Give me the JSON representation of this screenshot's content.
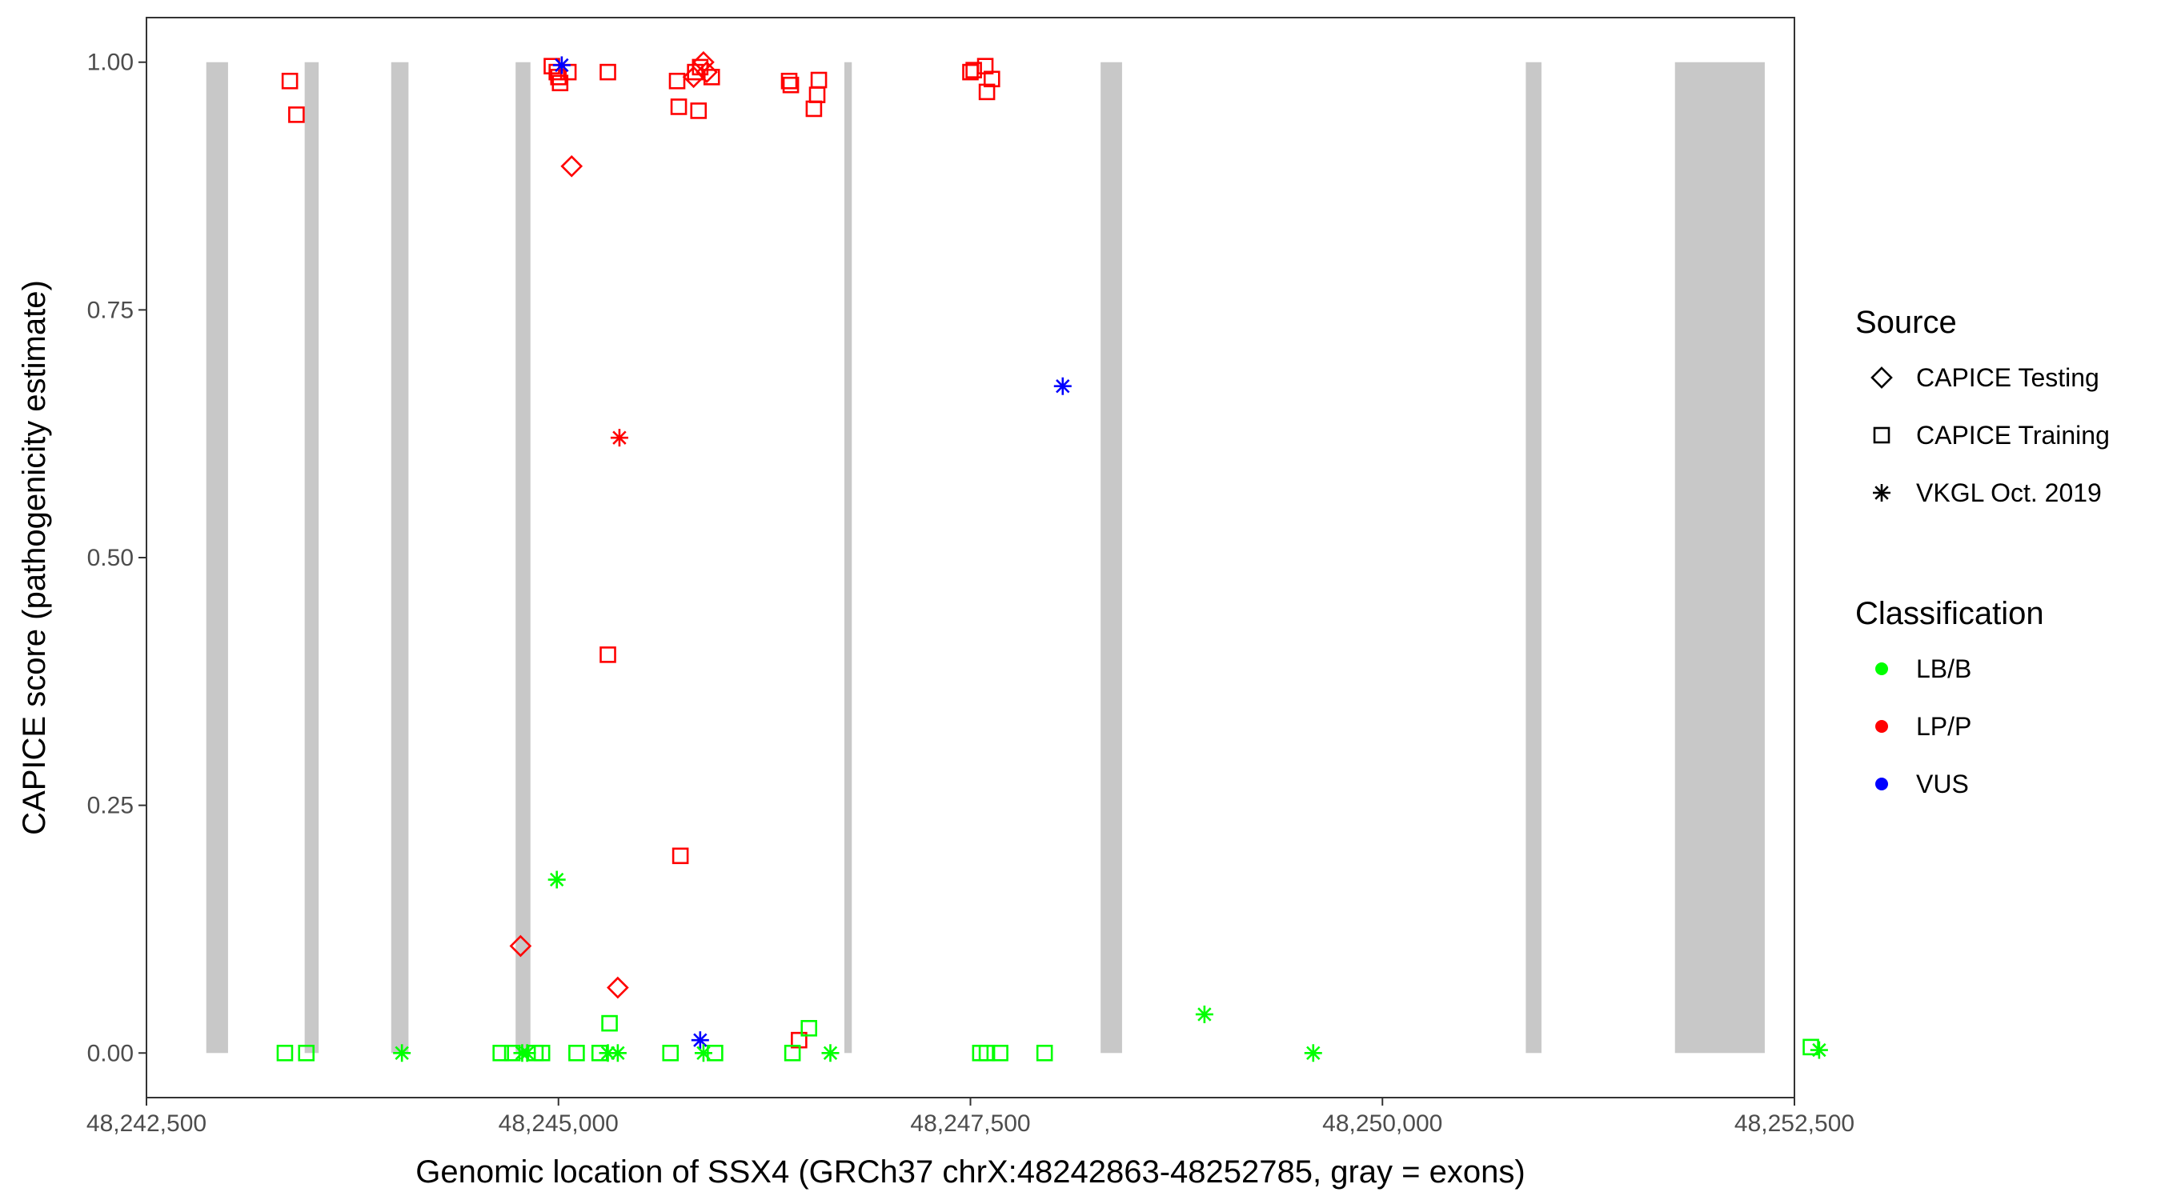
{
  "chart_data": {
    "type": "scatter",
    "xlabel": "Genomic location of SSX4 (GRCh37 chrX:48242863-48252785, gray = exons)",
    "ylabel": "CAPICE score (pathogenicity estimate)",
    "xlim": [
      42500,
      52500
    ],
    "ylim": [
      -0.045,
      1.045
    ],
    "x_ticks": [
      42500,
      45000,
      47500,
      50000,
      52500
    ],
    "x_tick_labels": [
      "48,242,500",
      "48,245,000",
      "48,247,500",
      "48,250,000",
      "48,252,500"
    ],
    "y_ticks": [
      0,
      0.25,
      0.5,
      0.75,
      1.0
    ],
    "y_tick_labels": [
      "0.00",
      "0.25",
      "0.50",
      "0.75",
      "1.00"
    ],
    "x_offset_note_removed": true,
    "exons": [
      [
        48242863,
        48242995
      ],
      [
        48243460,
        48243545
      ],
      [
        48243985,
        48244090
      ],
      [
        48244740,
        48244830
      ],
      [
        48246735,
        48246780
      ],
      [
        48248290,
        48248420
      ],
      [
        48250870,
        48250965
      ],
      [
        48251775,
        48252320
      ]
    ],
    "grid": false,
    "legend_position": "right",
    "legend": {
      "source_title": "Source",
      "source_entries": [
        {
          "label": "CAPICE Testing",
          "shape": "diamond"
        },
        {
          "label": "CAPICE Training",
          "shape": "square"
        },
        {
          "label": "VKGL Oct. 2019",
          "shape": "asterisk"
        }
      ],
      "class_title": "Classification",
      "class_entries": [
        {
          "label": "LB/B",
          "color": "#00ff00"
        },
        {
          "label": "LP/P",
          "color": "#ff0000"
        },
        {
          "label": "VUS",
          "color": "#0000ff"
        }
      ]
    },
    "colors": {
      "LB/B": "#00ff00",
      "LP/P": "#ff0000",
      "VUS": "#0000ff",
      "exon": "#c8c8c8"
    },
    "points": [
      {
        "x": 48243370,
        "y": 0.981,
        "source": "CAPICE Training",
        "class": "LP/P"
      },
      {
        "x": 48243410,
        "y": 0.947,
        "source": "CAPICE Training",
        "class": "LP/P"
      },
      {
        "x": 48244960,
        "y": 0.996,
        "source": "CAPICE Training",
        "class": "LP/P"
      },
      {
        "x": 48244990,
        "y": 0.99,
        "source": "CAPICE Training",
        "class": "LP/P"
      },
      {
        "x": 48245000,
        "y": 0.985,
        "source": "CAPICE Training",
        "class": "LP/P"
      },
      {
        "x": 48245010,
        "y": 0.979,
        "source": "CAPICE Training",
        "class": "LP/P"
      },
      {
        "x": 48245060,
        "y": 0.99,
        "source": "CAPICE Training",
        "class": "LP/P"
      },
      {
        "x": 48245300,
        "y": 0.99,
        "source": "CAPICE Training",
        "class": "LP/P"
      },
      {
        "x": 48245080,
        "y": 0.895,
        "source": "CAPICE Testing",
        "class": "LP/P"
      },
      {
        "x": 48245720,
        "y": 0.981,
        "source": "CAPICE Training",
        "class": "LP/P"
      },
      {
        "x": 48245730,
        "y": 0.955,
        "source": "CAPICE Training",
        "class": "LP/P"
      },
      {
        "x": 48245830,
        "y": 0.99,
        "source": "CAPICE Training",
        "class": "LP/P"
      },
      {
        "x": 48245860,
        "y": 0.995,
        "source": "CAPICE Training",
        "class": "LP/P"
      },
      {
        "x": 48245880,
        "y": 1.0,
        "source": "CAPICE Testing",
        "class": "LP/P"
      },
      {
        "x": 48245820,
        "y": 0.985,
        "source": "CAPICE Testing",
        "class": "LP/P"
      },
      {
        "x": 48245900,
        "y": 0.99,
        "source": "CAPICE Testing",
        "class": "LP/P"
      },
      {
        "x": 48245930,
        "y": 0.985,
        "source": "CAPICE Training",
        "class": "LP/P"
      },
      {
        "x": 48245850,
        "y": 0.951,
        "source": "CAPICE Training",
        "class": "LP/P"
      },
      {
        "x": 48246400,
        "y": 0.981,
        "source": "CAPICE Training",
        "class": "LP/P"
      },
      {
        "x": 48246410,
        "y": 0.977,
        "source": "CAPICE Training",
        "class": "LP/P"
      },
      {
        "x": 48246580,
        "y": 0.982,
        "source": "CAPICE Training",
        "class": "LP/P"
      },
      {
        "x": 48246570,
        "y": 0.967,
        "source": "CAPICE Training",
        "class": "LP/P"
      },
      {
        "x": 48246550,
        "y": 0.953,
        "source": "CAPICE Training",
        "class": "LP/P"
      },
      {
        "x": 48247500,
        "y": 0.99,
        "source": "CAPICE Training",
        "class": "LP/P"
      },
      {
        "x": 48247520,
        "y": 0.992,
        "source": "CAPICE Training",
        "class": "LP/P"
      },
      {
        "x": 48247590,
        "y": 0.996,
        "source": "CAPICE Training",
        "class": "LP/P"
      },
      {
        "x": 48247630,
        "y": 0.983,
        "source": "CAPICE Training",
        "class": "LP/P"
      },
      {
        "x": 48247600,
        "y": 0.97,
        "source": "CAPICE Training",
        "class": "LP/P"
      },
      {
        "x": 48245370,
        "y": 0.621,
        "source": "VKGL Oct. 2019",
        "class": "LP/P"
      },
      {
        "x": 48245300,
        "y": 0.402,
        "source": "CAPICE Training",
        "class": "LP/P"
      },
      {
        "x": 48245740,
        "y": 0.199,
        "source": "CAPICE Training",
        "class": "LP/P"
      },
      {
        "x": 48244770,
        "y": 0.108,
        "source": "CAPICE Testing",
        "class": "LP/P"
      },
      {
        "x": 48245360,
        "y": 0.066,
        "source": "CAPICE Testing",
        "class": "LP/P"
      },
      {
        "x": 48246460,
        "y": 0.013,
        "source": "CAPICE Training",
        "class": "LP/P"
      },
      {
        "x": 48245020,
        "y": 0.997,
        "source": "VKGL Oct. 2019",
        "class": "VUS"
      },
      {
        "x": 48248060,
        "y": 0.673,
        "source": "VKGL Oct. 2019",
        "class": "VUS"
      },
      {
        "x": 48245860,
        "y": 0.013,
        "source": "VKGL Oct. 2019",
        "class": "VUS"
      },
      {
        "x": 48244990,
        "y": 0.175,
        "source": "VKGL Oct. 2019",
        "class": "LB/B"
      },
      {
        "x": 48245310,
        "y": 0.03,
        "source": "CAPICE Training",
        "class": "LB/B"
      },
      {
        "x": 48246520,
        "y": 0.025,
        "source": "CAPICE Training",
        "class": "LB/B"
      },
      {
        "x": 48248920,
        "y": 0.039,
        "source": "VKGL Oct. 2019",
        "class": "LB/B"
      },
      {
        "x": 48252600,
        "y": 0.006,
        "source": "CAPICE Training",
        "class": "LB/B"
      },
      {
        "x": 48252650,
        "y": 0.003,
        "source": "VKGL Oct. 2019",
        "class": "LB/B"
      },
      {
        "x": 48243340,
        "y": 0.0,
        "source": "CAPICE Training",
        "class": "LB/B"
      },
      {
        "x": 48243470,
        "y": 0.0,
        "source": "CAPICE Training",
        "class": "LB/B"
      },
      {
        "x": 48244050,
        "y": 0.0,
        "source": "VKGL Oct. 2019",
        "class": "LB/B"
      },
      {
        "x": 48244650,
        "y": 0.0,
        "source": "CAPICE Training",
        "class": "LB/B"
      },
      {
        "x": 48244720,
        "y": 0.0,
        "source": "CAPICE Training",
        "class": "LB/B"
      },
      {
        "x": 48244780,
        "y": 0.0,
        "source": "VKGL Oct. 2019",
        "class": "LB/B"
      },
      {
        "x": 48244810,
        "y": 0.0,
        "source": "VKGL Oct. 2019",
        "class": "LB/B"
      },
      {
        "x": 48244860,
        "y": 0.0,
        "source": "CAPICE Training",
        "class": "LB/B"
      },
      {
        "x": 48244900,
        "y": 0.0,
        "source": "CAPICE Training",
        "class": "LB/B"
      },
      {
        "x": 48245110,
        "y": 0.0,
        "source": "CAPICE Training",
        "class": "LB/B"
      },
      {
        "x": 48245250,
        "y": 0.0,
        "source": "CAPICE Training",
        "class": "LB/B"
      },
      {
        "x": 48245300,
        "y": 0.0,
        "source": "VKGL Oct. 2019",
        "class": "LB/B"
      },
      {
        "x": 48245360,
        "y": 0.0,
        "source": "VKGL Oct. 2019",
        "class": "LB/B"
      },
      {
        "x": 48245680,
        "y": 0.0,
        "source": "CAPICE Training",
        "class": "LB/B"
      },
      {
        "x": 48245880,
        "y": 0.0,
        "source": "VKGL Oct. 2019",
        "class": "LB/B"
      },
      {
        "x": 48245950,
        "y": 0.0,
        "source": "CAPICE Training",
        "class": "LB/B"
      },
      {
        "x": 48246420,
        "y": 0.0,
        "source": "CAPICE Training",
        "class": "LB/B"
      },
      {
        "x": 48246650,
        "y": 0.0,
        "source": "VKGL Oct. 2019",
        "class": "LB/B"
      },
      {
        "x": 48247560,
        "y": 0.0,
        "source": "CAPICE Training",
        "class": "LB/B"
      },
      {
        "x": 48247600,
        "y": 0.0,
        "source": "CAPICE Training",
        "class": "LB/B"
      },
      {
        "x": 48247680,
        "y": 0.0,
        "source": "CAPICE Training",
        "class": "LB/B"
      },
      {
        "x": 48247950,
        "y": 0.0,
        "source": "CAPICE Training",
        "class": "LB/B"
      },
      {
        "x": 48249580,
        "y": 0.0,
        "source": "VKGL Oct. 2019",
        "class": "LB/B"
      }
    ]
  }
}
